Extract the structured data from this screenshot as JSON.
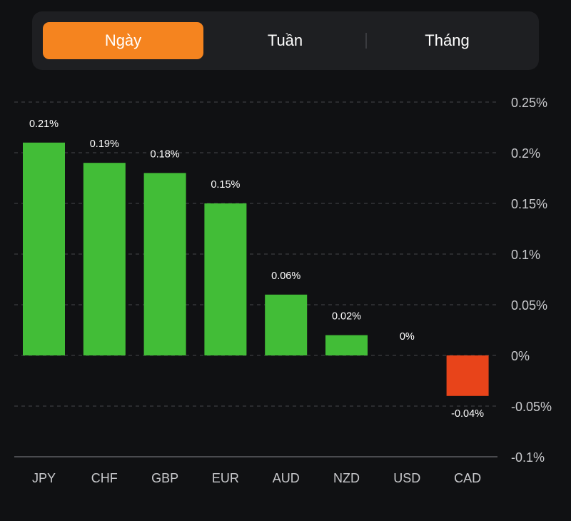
{
  "tabs": [
    {
      "label": "Ngày",
      "active": true
    },
    {
      "label": "Tuần",
      "active": false
    },
    {
      "label": "Tháng",
      "active": false
    }
  ],
  "colors": {
    "accent": "#f5841f",
    "positive": "#42bd37",
    "negative": "#e8441a",
    "background": "#101113",
    "panel": "#1e1f22"
  },
  "chart_data": {
    "type": "bar",
    "title": "",
    "xlabel": "",
    "ylabel": "",
    "categories": [
      "JPY",
      "CHF",
      "GBP",
      "EUR",
      "AUD",
      "NZD",
      "USD",
      "CAD"
    ],
    "values": [
      0.21,
      0.19,
      0.18,
      0.15,
      0.06,
      0.02,
      0,
      -0.04
    ],
    "data_labels": [
      "0.21%",
      "0.19%",
      "0.18%",
      "0.15%",
      "0.06%",
      "0.02%",
      "0%",
      "-0.04%"
    ],
    "unit": "%",
    "ylim": [
      -0.1,
      0.25
    ],
    "yticks": [
      0.25,
      0.2,
      0.15,
      0.1,
      0.05,
      0,
      -0.05,
      -0.1
    ],
    "ytick_labels": [
      "0.25%",
      "0.2%",
      "0.15%",
      "0.1%",
      "0.05%",
      "0%",
      "-0.05%",
      "-0.1%"
    ],
    "yaxis_position": "right",
    "grid": true,
    "legend": "none"
  }
}
